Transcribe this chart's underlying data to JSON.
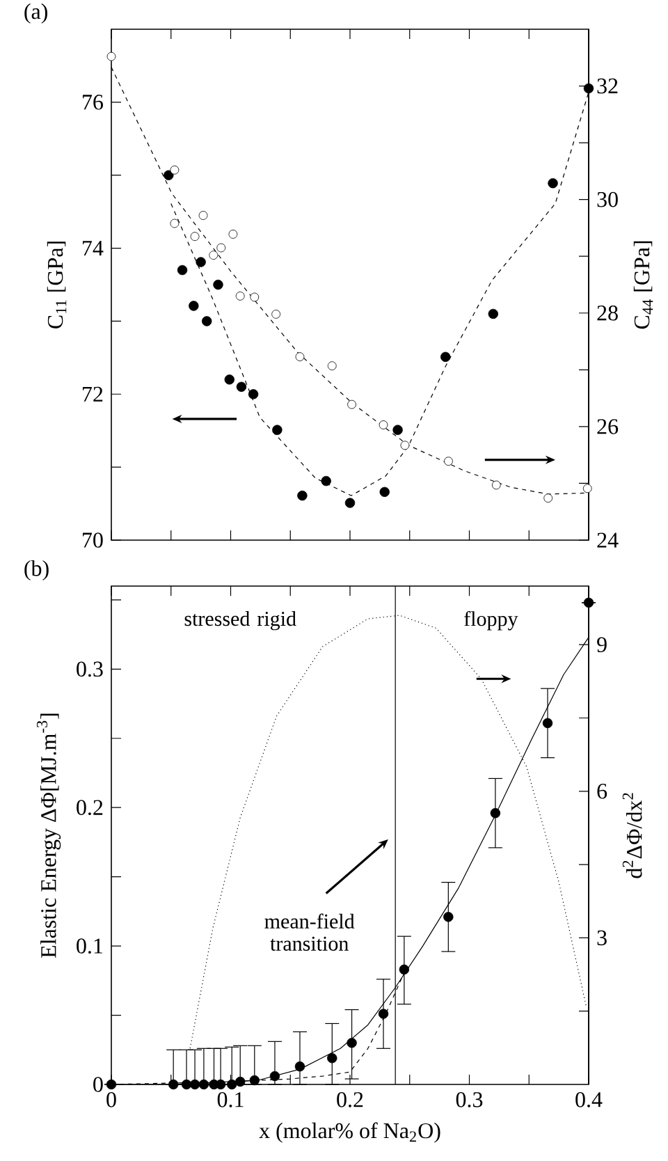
{
  "chart_data": [
    {
      "type": "scatter",
      "title": "(a)",
      "ylabel": "C$_{11}$ [GPa]",
      "y2label": "C$_{44}$ [GPa]",
      "xlim": [
        0,
        0.4
      ],
      "xticks": [
        0,
        0.05,
        0.1,
        0.15,
        0.2,
        0.25,
        0.3,
        0.35,
        0.4
      ],
      "ylim": [
        70,
        77
      ],
      "yticks": [
        70,
        {
          "value": 71,
          "label": null
        },
        72,
        {
          "value": 73,
          "label": null
        },
        74,
        {
          "value": 75,
          "label": null
        },
        76
      ],
      "y2lim": [
        24,
        33
      ],
      "y2ticks": [
        24,
        {
          "value": 25,
          "label": null
        },
        26,
        {
          "value": 27,
          "label": null
        },
        28,
        {
          "value": 29,
          "label": null
        },
        30,
        {
          "value": 31,
          "label": null
        },
        32
      ],
      "tick_labels": "y",
      "series": [
        {
          "type": "line",
          "line_style": "dashed",
          "marker": "none",
          "color": "#000000",
          "x": [
            0.05,
            0.084,
            0.1245,
            0.171,
            0.201,
            0.23,
            0.249,
            0.28,
            0.319,
            0.372,
            0.4
          ],
          "values": [
            74.61,
            73.34,
            71.68,
            70.85,
            70.61,
            70.88,
            71.29,
            72.38,
            73.56,
            74.61,
            76.14
          ]
        },
        {
          "marker": "circle",
          "color": "#000000",
          "x": [
            0.048,
            0.0595,
            0.069,
            0.075,
            0.08,
            0.0895,
            0.099,
            0.109,
            0.119,
            0.139,
            0.16,
            0.18,
            0.2,
            0.229,
            0.24,
            0.28,
            0.32,
            0.37,
            0.4
          ],
          "values": [
            75.0,
            73.7,
            73.21,
            73.81,
            73.0,
            73.5,
            72.2,
            72.1,
            72.0,
            71.51,
            70.61,
            70.81,
            70.51,
            70.66,
            71.51,
            72.51,
            73.1,
            74.89,
            76.19
          ]
        },
        {
          "type": "line",
          "axis": "y2",
          "line_style": "dashed",
          "marker": "none",
          "color": "#000000",
          "x": [
            0,
            0.0506,
            0.101,
            0.156,
            0.202,
            0.249,
            0.296,
            0.335,
            0.366,
            0.399
          ],
          "values": [
            32.33,
            30.11,
            28.71,
            27.31,
            26.41,
            25.67,
            25.22,
            24.93,
            24.81,
            24.83
          ]
        },
        {
          "axis": "y2",
          "marker": "circle open",
          "color": "#000000",
          "x": [
            0,
            0.053,
            0.053,
            0.07,
            0.077,
            0.0856,
            0.092,
            0.102,
            0.108,
            0.12,
            0.138,
            0.158,
            0.185,
            0.2015,
            0.228,
            0.246,
            0.2825,
            0.3226,
            0.366,
            0.399
          ],
          "values": [
            32.52,
            30.52,
            29.58,
            29.35,
            29.72,
            29.02,
            29.15,
            29.39,
            28.3,
            28.28,
            27.98,
            27.23,
            27.07,
            26.39,
            26.03,
            25.67,
            25.39,
            24.97,
            24.74,
            24.91
          ]
        }
      ]
    },
    {
      "type": "scatter",
      "title": "(b)",
      "xlabel": "x (molar% of Na$_{2}$O)",
      "ylabel": "Elastic Energy ΔΦ[MJ.m$^{-3}$]",
      "y2label": "d$^{2}$ΔΦ/dx$^{2}$",
      "xlim": [
        0,
        0.4
      ],
      "xticks": [
        0,
        {
          "value": 0.05,
          "label": null
        },
        0.1,
        {
          "value": 0.15,
          "label": null
        },
        0.2,
        {
          "value": 0.25,
          "label": null
        },
        0.3,
        {
          "value": 0.35,
          "label": null
        },
        0.4
      ],
      "ylim": [
        0,
        0.36
      ],
      "yticks": [
        0,
        {
          "value": 0.05,
          "label": null
        },
        0.1,
        {
          "value": 0.15,
          "label": null
        },
        0.2,
        {
          "value": 0.25,
          "label": null
        },
        0.3,
        {
          "value": 0.35,
          "label": null
        }
      ],
      "y2lim": [
        0,
        10.2
      ],
      "y2ticks": [
        {
          "value": 1.5,
          "label": null
        },
        3,
        {
          "value": 4.5,
          "label": null
        },
        6,
        {
          "value": 7.5,
          "label": null
        },
        9
      ],
      "annotations": [
        "stressed rigid",
        "floppy",
        "mean-field transition"
      ],
      "ref_lines": [
        {
          "axis": "x",
          "value": 0.238,
          "color": "#000000",
          "line_style": "solid"
        }
      ],
      "series": [
        {
          "type": "line",
          "axis": "y2",
          "line_style": "dotted",
          "marker": "none",
          "color": "#000000",
          "x": [
            0.066,
            0.085,
            0.108,
            0.1385,
            0.177,
            0.215,
            0.2416,
            0.272,
            0.31,
            0.348,
            0.375,
            0.398
          ],
          "values": [
            0.74,
            3.19,
            5.46,
            7.54,
            8.96,
            9.53,
            9.6,
            9.34,
            8.3,
            6.5,
            4.14,
            1.59
          ]
        },
        {
          "type": "line",
          "line_style": "dashed",
          "marker": "none",
          "color": "#000000",
          "x": [
            0,
            0.1,
            0.15,
            0.177,
            0.2,
            0.215,
            0.23,
            0.245
          ],
          "values": [
            0,
            0.002,
            0.004,
            0.006,
            0.009,
            0.026,
            0.051,
            0.08
          ]
        },
        {
          "type": "line",
          "line_style": "solid",
          "marker": "none",
          "color": "#000000",
          "x": [
            0,
            0.05,
            0.123,
            0.158,
            0.192,
            0.215,
            0.238,
            0.261,
            0.291,
            0.322,
            0.352,
            0.379,
            0.4
          ],
          "values": [
            0,
            0,
            0.003,
            0.011,
            0.026,
            0.043,
            0.07,
            0.1,
            0.142,
            0.195,
            0.249,
            0.296,
            0.323
          ]
        },
        {
          "marker": "circle",
          "color": "#000000",
          "x": [
            0,
            0.052,
            0.063,
            0.07,
            0.0775,
            0.086,
            0.0916,
            0.101,
            0.108,
            0.12,
            0.137,
            0.158,
            0.185,
            0.2015,
            0.228,
            0.2454,
            0.2824,
            0.3218,
            0.3656,
            0.4
          ],
          "values": [
            0,
            0,
            0,
            0,
            0,
            0,
            0,
            0,
            0.002,
            0.003,
            0.006,
            0.013,
            0.019,
            0.03,
            0.051,
            0.083,
            0.121,
            0.196,
            0.261,
            0.348
          ],
          "errors": [
            null,
            [
              0,
              0.025
            ],
            [
              0,
              0.025
            ],
            [
              0,
              0.025
            ],
            [
              0,
              0.026
            ],
            [
              0,
              0.026
            ],
            [
              0,
              0.026
            ],
            [
              0,
              0.027
            ],
            [
              0,
              0.028
            ],
            [
              0,
              0.028
            ],
            [
              0,
              0.031
            ],
            [
              0,
              0.038
            ],
            [
              0,
              0.044
            ],
            [
              0.004,
              0.054
            ],
            [
              0.026,
              0.076
            ],
            [
              0.058,
              0.107
            ],
            [
              0.096,
              0.146
            ],
            [
              0.171,
              0.221
            ],
            [
              0.236,
              0.286
            ],
            null
          ]
        }
      ]
    }
  ]
}
